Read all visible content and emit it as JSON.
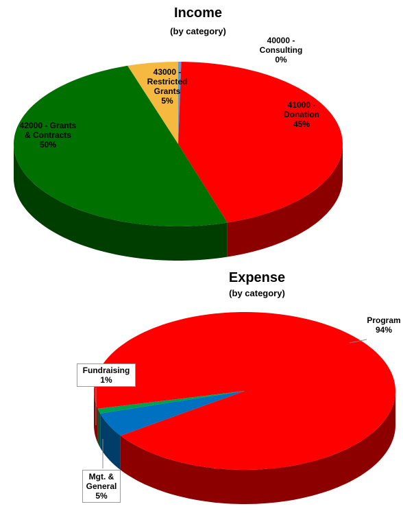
{
  "chart_data": [
    {
      "type": "pie",
      "title": "Income",
      "subtitle": "(by category)",
      "categories": [
        "40000 - Consulting",
        "41000 - Donation",
        "42000 - Grants & Contracts",
        "43000 - Restricted Grants"
      ],
      "values": [
        0.3,
        45,
        50,
        5
      ],
      "value_labels": [
        "0%",
        "45%",
        "50%",
        "5%"
      ],
      "colors": [
        "#5b9bd5",
        "#ff0000",
        "#007000",
        "#f5b940"
      ]
    },
    {
      "type": "pie",
      "title": "Expense",
      "subtitle": "(by category)",
      "categories": [
        "Program",
        "Mgt. & General",
        "Fundraising"
      ],
      "values": [
        94,
        5,
        1
      ],
      "value_labels": [
        "94%",
        "5%",
        "1%"
      ],
      "colors": [
        "#ff0000",
        "#0070c0",
        "#00a050"
      ]
    }
  ]
}
